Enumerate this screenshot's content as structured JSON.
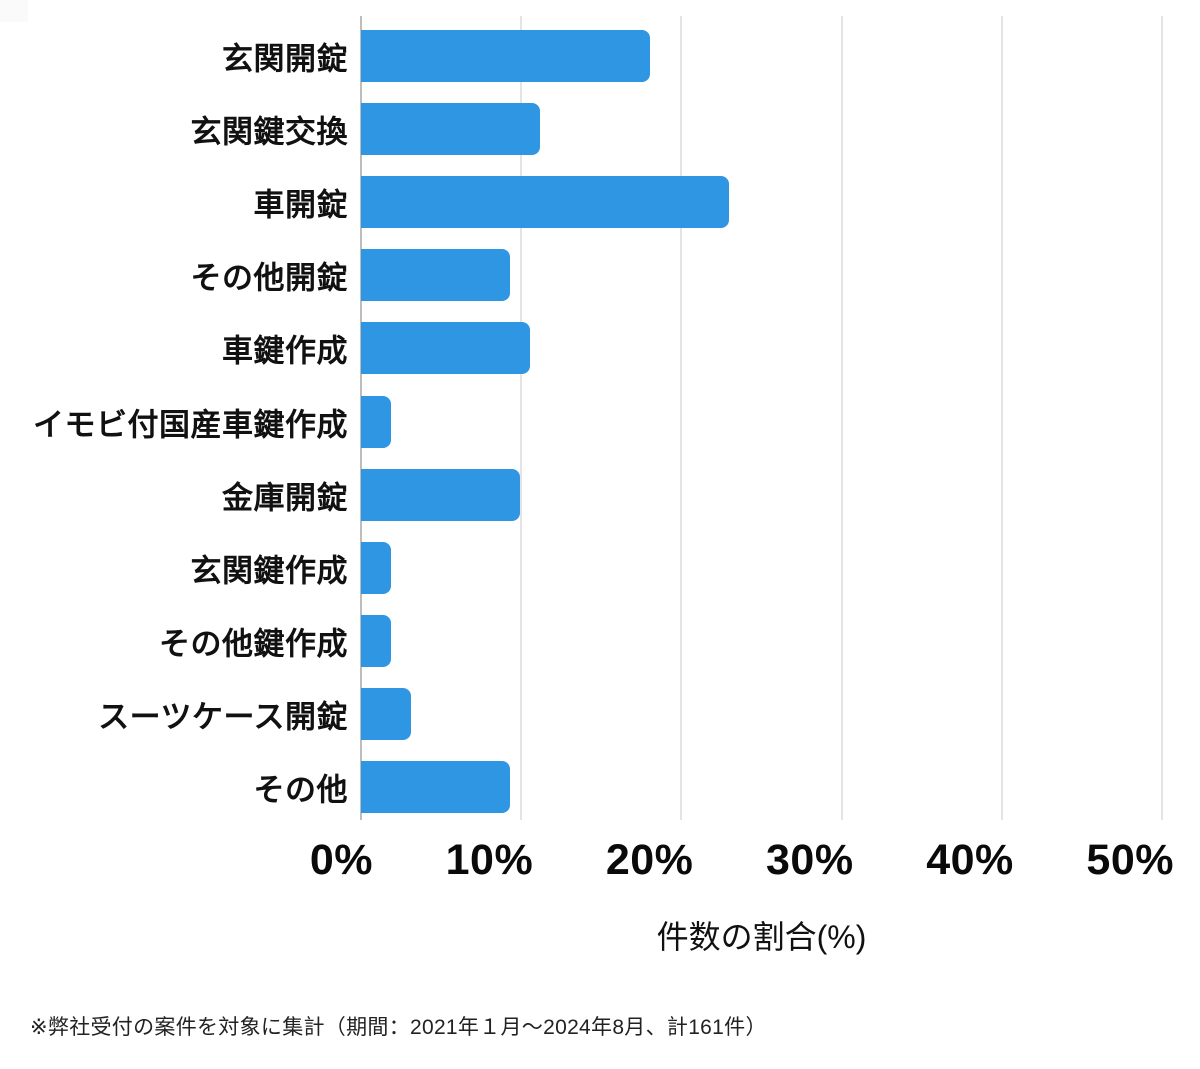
{
  "chart_data": {
    "type": "bar",
    "orientation": "horizontal",
    "title": "",
    "xlabel": "件数の割合(%)",
    "ylabel": "",
    "xlim": [
      0,
      50
    ],
    "grid": true,
    "bar_color": "#2e96e3",
    "x_ticks": [
      "0%",
      "10%",
      "20%",
      "30%",
      "40%",
      "50%"
    ],
    "x_tick_values": [
      0,
      10,
      20,
      30,
      40,
      50
    ],
    "categories": [
      "玄関開錠",
      "玄関鍵交換",
      "車開錠",
      "その他開錠",
      "車鍵作成",
      "イモビ付国産車鍵作成",
      "金庫開錠",
      "玄関鍵作成",
      "その他鍵作成",
      "スーツケース開錠",
      "その他"
    ],
    "values": [
      18.01,
      11.18,
      22.98,
      9.32,
      10.56,
      1.86,
      9.94,
      1.86,
      1.86,
      3.11,
      9.32
    ],
    "total_cases_note": "計161件"
  },
  "footnote": "※弊社受付の案件を対象に集計（期間：2021年１月～2024年8月、計161件）"
}
